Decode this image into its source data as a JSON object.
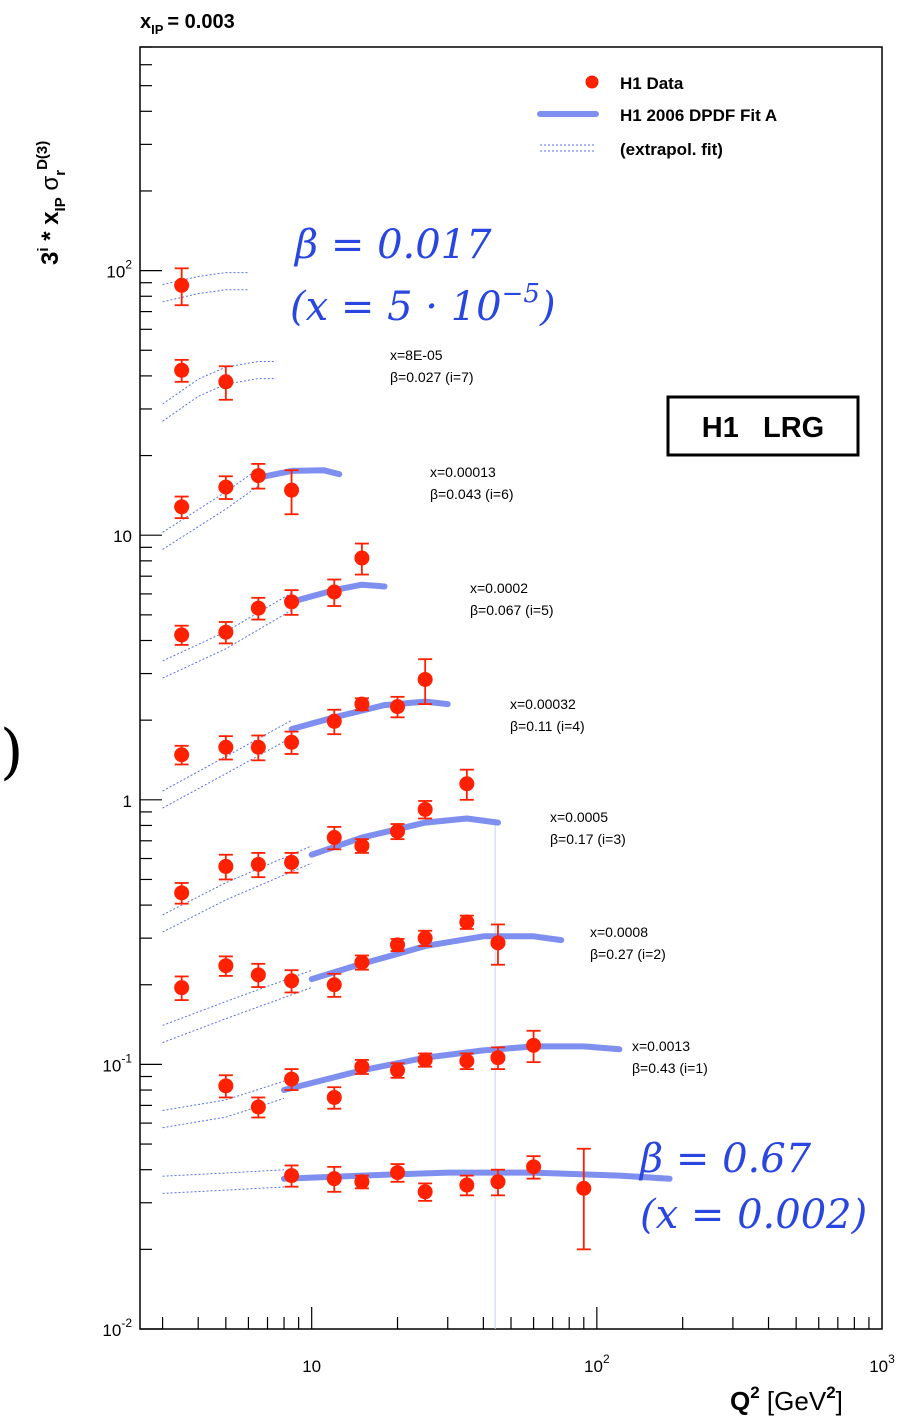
{
  "header": {
    "xpom_label": "x",
    "xpom_sub": "IP",
    "xpom_value": "= 0.003"
  },
  "y_axis_label": {
    "prefix": "3",
    "prefix_sup": "i",
    "star": " * x",
    "xsub": "IP",
    "sigma": " σ",
    "sigma_sub": "r",
    "sigma_sup": "D(3)"
  },
  "x_axis_label": {
    "q": "Q",
    "q_sup": "2",
    "unit_open": " [GeV",
    "unit_sup": "2",
    "unit_close": "]"
  },
  "legend": {
    "data": "H1 Data",
    "fit": "H1 2006 DPDF Fit A",
    "extrap": "(extrapol. fit)"
  },
  "badge": "H1   LRG",
  "annotations": {
    "top_beta": "β = 0.017",
    "top_x": "(x = 5 · 10",
    "top_x_exp": "−5",
    "top_x_close": ")",
    "bottom_beta": "β = 0.67",
    "bottom_x": "(x = 0.002)",
    "cut_fragment": ")"
  },
  "colors": {
    "data": "#ff2000",
    "fit": "#7f8ff0",
    "extrap": "#5a70e8",
    "accent_text": "#2a46e0"
  },
  "chart_data": {
    "type": "scatter",
    "log_x": true,
    "log_y": true,
    "xlim": [
      2.5,
      1000
    ],
    "ylim": [
      0.01,
      700
    ],
    "x_ticks": [
      {
        "v": 10,
        "base": "10",
        "exp": ""
      },
      {
        "v": 100,
        "base": "10",
        "exp": "2"
      },
      {
        "v": 1000,
        "base": "10",
        "exp": "3"
      }
    ],
    "y_ticks": [
      {
        "v": 0.01,
        "base": "10",
        "exp": "-2"
      },
      {
        "v": 0.1,
        "base": "10",
        "exp": "-1"
      },
      {
        "v": 1,
        "base": "1",
        "exp": ""
      },
      {
        "v": 10,
        "base": "10",
        "exp": ""
      },
      {
        "v": 100,
        "base": "10",
        "exp": "2"
      }
    ],
    "series": [
      {
        "name": "x=0.002 β=0.67 (i=0)",
        "line1": "",
        "line2": "",
        "points": [
          [
            8.5,
            0.038,
            0.0035
          ],
          [
            12,
            0.037,
            0.004
          ],
          [
            15,
            0.036,
            0.002
          ],
          [
            20,
            0.039,
            0.003
          ],
          [
            25,
            0.033,
            0.0025
          ],
          [
            35,
            0.035,
            0.003
          ],
          [
            45,
            0.036,
            0.004
          ],
          [
            60,
            0.041,
            0.004
          ],
          [
            90,
            0.034,
            0.014
          ]
        ],
        "fit": [
          [
            8,
            0.037
          ],
          [
            15,
            0.038
          ],
          [
            30,
            0.039
          ],
          [
            60,
            0.039
          ],
          [
            120,
            0.038
          ],
          [
            180,
            0.037
          ]
        ],
        "extrap": [
          [
            3,
            0.035
          ],
          [
            5,
            0.036
          ],
          [
            8,
            0.037
          ]
        ]
      },
      {
        "name": "x=0.0013 β=0.43 (i=1)",
        "line1": "x=0.0013",
        "line2": "β=0.43 (i=1)",
        "points": [
          [
            5,
            0.083,
            0.008
          ],
          [
            6.5,
            0.069,
            0.006
          ],
          [
            8.5,
            0.088,
            0.008
          ],
          [
            12,
            0.075,
            0.007
          ],
          [
            15,
            0.098,
            0.006
          ],
          [
            20,
            0.095,
            0.006
          ],
          [
            25,
            0.104,
            0.006
          ],
          [
            35,
            0.103,
            0.007
          ],
          [
            45,
            0.106,
            0.01
          ],
          [
            60,
            0.118,
            0.016
          ]
        ],
        "fit": [
          [
            8,
            0.08
          ],
          [
            15,
            0.095
          ],
          [
            25,
            0.106
          ],
          [
            40,
            0.113
          ],
          [
            60,
            0.117
          ],
          [
            90,
            0.117
          ],
          [
            120,
            0.114
          ]
        ],
        "extrap": [
          [
            3,
            0.062
          ],
          [
            5,
            0.068
          ],
          [
            8,
            0.08
          ]
        ]
      },
      {
        "name": "x=0.0008 β=0.27 (i=2)",
        "line1": "x=0.0008",
        "line2": "β=0.27 (i=2)",
        "points": [
          [
            3.5,
            0.195,
            0.02
          ],
          [
            5,
            0.236,
            0.02
          ],
          [
            6.5,
            0.218,
            0.022
          ],
          [
            8.5,
            0.207,
            0.02
          ],
          [
            12,
            0.2,
            0.02
          ],
          [
            15,
            0.243,
            0.015
          ],
          [
            20,
            0.283,
            0.015
          ],
          [
            25,
            0.3,
            0.02
          ],
          [
            35,
            0.345,
            0.02
          ],
          [
            45,
            0.288,
            0.05
          ]
        ],
        "fit": [
          [
            10,
            0.21
          ],
          [
            15,
            0.24
          ],
          [
            25,
            0.28
          ],
          [
            40,
            0.305
          ],
          [
            60,
            0.305
          ],
          [
            75,
            0.295
          ]
        ],
        "extrap": [
          [
            3,
            0.13
          ],
          [
            5,
            0.16
          ],
          [
            10,
            0.21
          ]
        ]
      },
      {
        "name": "x=0.0005 β=0.17 (i=3)",
        "line1": "x=0.0005",
        "line2": "β=0.17 (i=3)",
        "points": [
          [
            3.5,
            0.445,
            0.04
          ],
          [
            5,
            0.56,
            0.06
          ],
          [
            6.5,
            0.57,
            0.06
          ],
          [
            8.5,
            0.58,
            0.05
          ],
          [
            12,
            0.72,
            0.07
          ],
          [
            15,
            0.67,
            0.04
          ],
          [
            20,
            0.76,
            0.05
          ],
          [
            25,
            0.92,
            0.07
          ],
          [
            35,
            1.15,
            0.15
          ]
        ],
        "fit": [
          [
            10,
            0.62
          ],
          [
            15,
            0.72
          ],
          [
            25,
            0.82
          ],
          [
            35,
            0.85
          ],
          [
            45,
            0.82
          ]
        ],
        "extrap": [
          [
            3,
            0.34
          ],
          [
            5,
            0.45
          ],
          [
            10,
            0.62
          ]
        ]
      },
      {
        "name": "x=0.00032 β=0.11 (i=4)",
        "line1": "x=0.00032",
        "line2": "β=0.11 (i=4)",
        "points": [
          [
            3.5,
            1.48,
            0.12
          ],
          [
            5,
            1.58,
            0.16
          ],
          [
            6.5,
            1.58,
            0.17
          ],
          [
            8.5,
            1.65,
            0.16
          ],
          [
            12,
            1.98,
            0.21
          ],
          [
            15,
            2.3,
            0.12
          ],
          [
            20,
            2.25,
            0.2
          ],
          [
            25,
            2.85,
            0.55
          ]
        ],
        "fit": [
          [
            8.5,
            1.85
          ],
          [
            12,
            2.05
          ],
          [
            18,
            2.28
          ],
          [
            25,
            2.35
          ],
          [
            30,
            2.3
          ]
        ],
        "extrap": [
          [
            3,
            1.0
          ],
          [
            5,
            1.35
          ],
          [
            8.5,
            1.85
          ]
        ]
      },
      {
        "name": "x=0.0002 β=0.067 (i=5)",
        "line1": "x=0.0002",
        "line2": "β=0.067 (i=5)",
        "points": [
          [
            3.5,
            4.2,
            0.35
          ],
          [
            5,
            4.3,
            0.4
          ],
          [
            6.5,
            5.3,
            0.5
          ],
          [
            8.5,
            5.6,
            0.6
          ],
          [
            12,
            6.1,
            0.7
          ],
          [
            15,
            8.2,
            1.1
          ]
        ],
        "fit": [
          [
            8.5,
            5.6
          ],
          [
            12,
            6.2
          ],
          [
            15,
            6.5
          ],
          [
            18,
            6.4
          ]
        ],
        "extrap": [
          [
            3,
            3.1
          ],
          [
            5,
            4.0
          ],
          [
            8.5,
            5.6
          ]
        ]
      },
      {
        "name": "x=0.00013 β=0.043 (i=6)",
        "line1": "x=0.00013",
        "line2": "β=0.043 (i=6)",
        "points": [
          [
            3.5,
            12.8,
            1.2
          ],
          [
            5,
            15.2,
            1.5
          ],
          [
            6.5,
            16.8,
            1.8
          ],
          [
            8.5,
            14.8,
            2.8
          ]
        ],
        "fit": [
          [
            6.5,
            16.5
          ],
          [
            8.5,
            17.5
          ],
          [
            11,
            17.6
          ],
          [
            12.5,
            17.0
          ]
        ],
        "extrap": [
          [
            3,
            9.5
          ],
          [
            5,
            13.5
          ],
          [
            6.5,
            16.5
          ]
        ]
      },
      {
        "name": "x=8E-05 β=0.027 (i=7)",
        "line1": "x=8E-05",
        "line2": "β=0.027 (i=7)",
        "points": [
          [
            3.5,
            42,
            4
          ],
          [
            5,
            38,
            5.5
          ]
        ],
        "fit": [],
        "extrap": [
          [
            3,
            29
          ],
          [
            4,
            36
          ],
          [
            5,
            40
          ],
          [
            6.5,
            42
          ],
          [
            7.5,
            42
          ]
        ]
      },
      {
        "name": "x=5·10⁻⁵ β=0.017 (i=8)",
        "line1": "",
        "line2": "",
        "points": [
          [
            3.5,
            88,
            14
          ]
        ],
        "fit": [],
        "extrap": [
          [
            3,
            82
          ],
          [
            4,
            88
          ],
          [
            5,
            91
          ],
          [
            6,
            91
          ]
        ]
      }
    ]
  }
}
